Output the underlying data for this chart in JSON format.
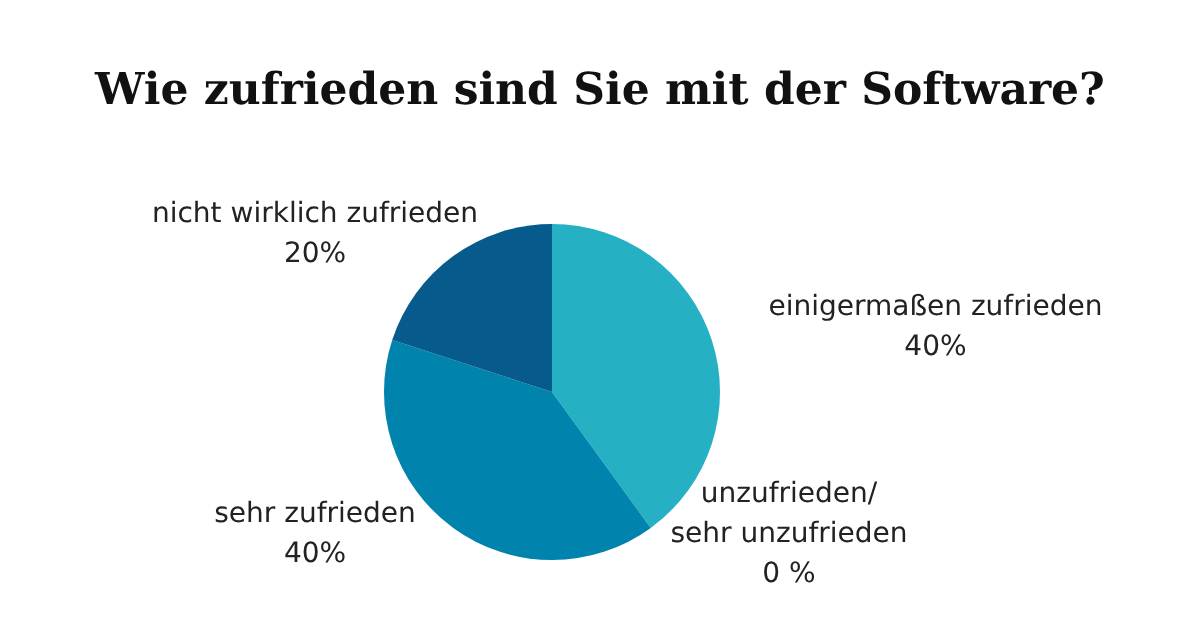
{
  "chart_data": {
    "type": "pie",
    "title": "Wie zufrieden sind Sie mit der Software?",
    "categories": [
      "einigermaßen zufrieden",
      "unzufrieden/ sehr unzufrieden",
      "sehr zufrieden",
      "nicht wirklich zufrieden"
    ],
    "values": [
      40,
      0,
      40,
      20
    ],
    "colors": [
      "#26b0c4",
      "#1e6fa8",
      "#0083ad",
      "#065a8c"
    ],
    "value_labels": [
      "40%",
      "0 %",
      "40%",
      "20%"
    ]
  }
}
